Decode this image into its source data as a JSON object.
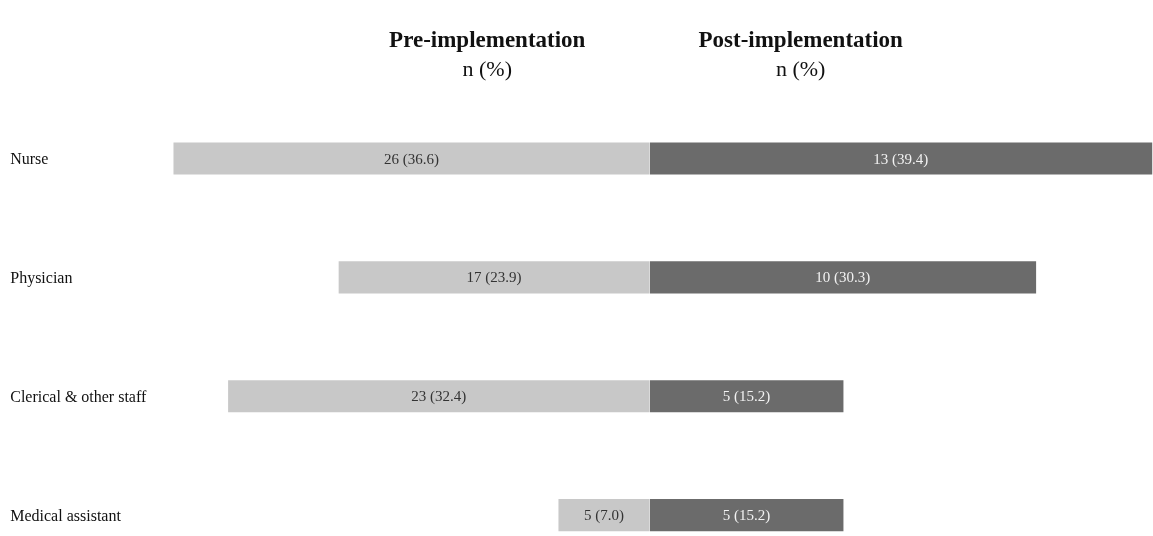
{
  "chart_data": [
    {
      "type": "bar",
      "orientation": "horizontal",
      "title": "Pre-implementation",
      "subtitle": "n (%)",
      "categories": [
        "Nurse",
        "Physician",
        "Clerical & other staff",
        "Medical assistant"
      ],
      "series": [
        {
          "color": "#c8c8c8",
          "values": [
            36.6,
            23.9,
            32.4,
            7.0
          ],
          "value_labels": [
            "26 (36.6)",
            "17 (23.9)",
            "23 (32.4)",
            "5 (7.0)"
          ]
        }
      ],
      "xlim": [
        49.9,
        0
      ],
      "grid": false,
      "tick_labels": "y"
    },
    {
      "type": "bar",
      "orientation": "horizontal",
      "title": "Post-implementation",
      "subtitle": "n (%)",
      "categories": [
        null,
        null,
        null,
        null
      ],
      "series": [
        {
          "color": "#6b6b6b",
          "values": [
            39.4,
            30.3,
            15.2,
            15.2
          ],
          "value_labels": [
            "13 (39.4)",
            "10 (30.3)",
            "5 (15.2)",
            "5 (15.2)"
          ]
        }
      ],
      "xlim": [
        0,
        39.5
      ],
      "grid": false
    }
  ]
}
